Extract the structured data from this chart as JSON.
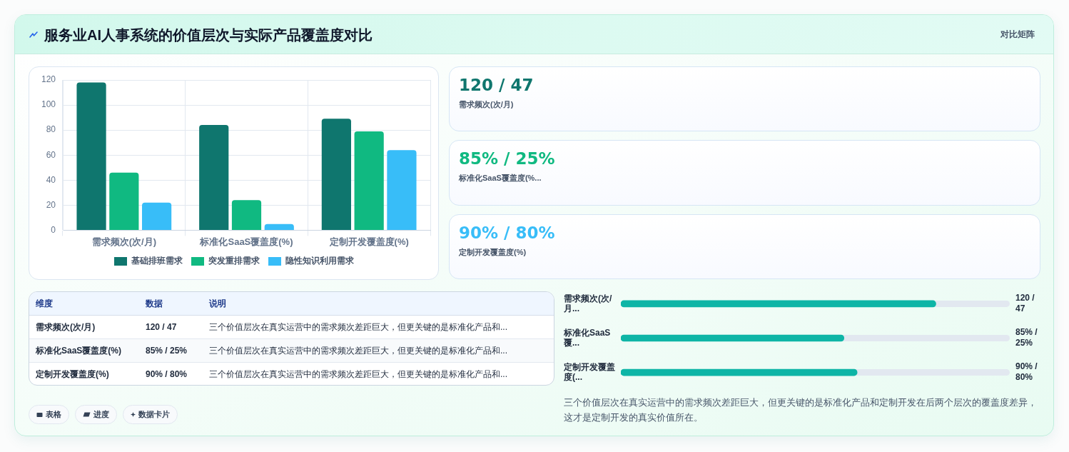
{
  "chart_data": [
    {
      "type": "bar",
      "title": "服务业AI人事系统的价值层次与实际产品覆盖度对比",
      "categories": [
        "需求频次(次/月)",
        "标准化SaaS覆盖度(%)",
        "定制开发覆盖度(%)"
      ],
      "series": [
        {
          "name": "基础排班需求",
          "color": "#0f766e",
          "values": [
            118,
            84,
            89
          ]
        },
        {
          "name": "突发重排需求",
          "color": "#10b981",
          "values": [
            46,
            24,
            79
          ]
        },
        {
          "name": "隐性知识利用需求",
          "color": "#38bdf8",
          "values": [
            22,
            5,
            64
          ]
        }
      ],
      "ylim": [
        0,
        120
      ],
      "yticks": [
        0,
        20,
        40,
        60,
        80,
        100,
        120
      ],
      "grid": true,
      "legend": "bottom"
    },
    {
      "type": "other",
      "title": "120 / 47",
      "subtitle": "需求频次(次/月)",
      "color": "#0f766e",
      "annotations": [
        "对比矩阵"
      ]
    },
    {
      "type": "other",
      "title": "85% / 25%",
      "subtitle": "标准化SaaS覆盖度(%...",
      "color": "#10b981"
    },
    {
      "type": "other",
      "title": "90% / 80%",
      "subtitle": "定制开发覆盖度(%)",
      "color": "#38bdf8"
    },
    {
      "type": "other",
      "categories": [
        "维度",
        "数据",
        "说明"
      ],
      "cell_labels": [
        [
          "需求频次(次/月)",
          "120 / 47",
          "三个价值层次在真实运营中的需求频次差距巨大，但更关键的是标准化产品和..."
        ],
        [
          "标准化SaaS覆盖度(%)",
          "85% / 25%",
          "三个价值层次在真实运营中的需求频次差距巨大，但更关键的是标准化产品和..."
        ],
        [
          "定制开发覆盖度(%)",
          "90% / 80%",
          "三个价值层次在真实运营中的需求频次差距巨大，但更关键的是标准化产品和..."
        ]
      ]
    },
    {
      "type": "bar",
      "orientation": "horizontal",
      "categories": [
        "需求频次(次/月...",
        "标准化SaaS覆...",
        "定制开发覆盖度(..."
      ],
      "values": [
        120,
        85,
        90
      ],
      "color": "#0eb5a6",
      "value_labels": [
        "120 / 47",
        "85% / 25%",
        "90% / 80%"
      ],
      "annotations": [
        "三个价值层次在真实运营中的需求频次差距巨大，但更关键的是标准化产品和定制开发在后两个层次的覆盖度差异，这才是定制开发的真实价值所在。"
      ]
    },
    {
      "type": "other",
      "annotations": [
        "表格",
        "进度",
        "数据卡片"
      ]
    }
  ]
}
